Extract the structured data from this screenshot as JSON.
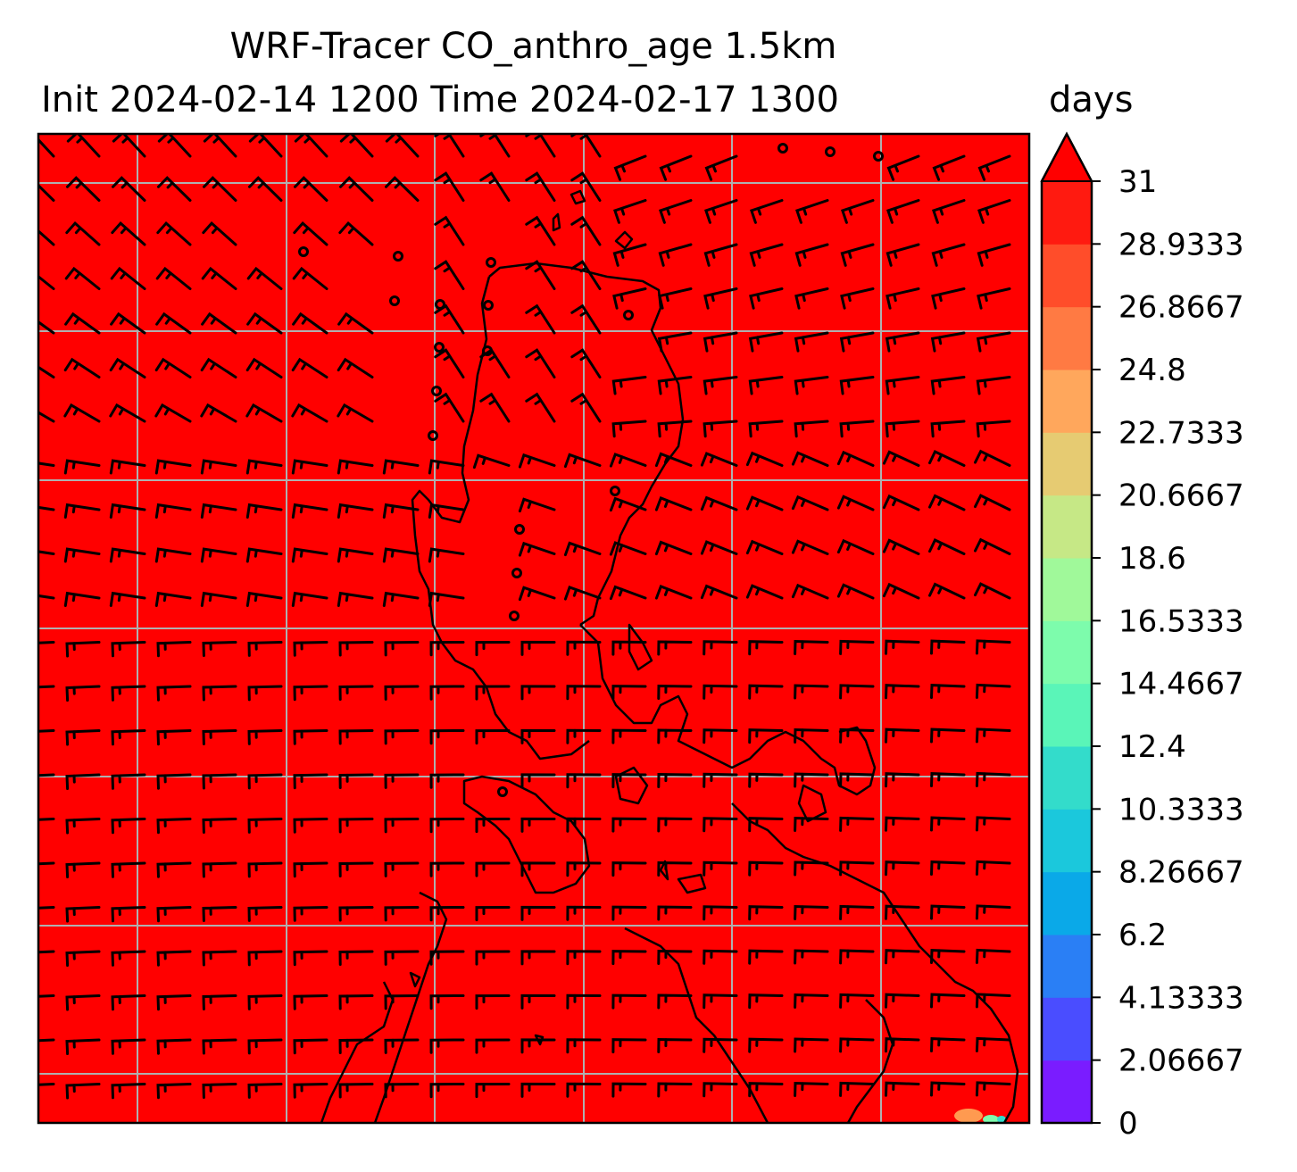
{
  "title": {
    "line1": "WRF-Tracer CO_anthro_age 1.5km",
    "line2": "Init 2024-02-14 1200 Time 2024-02-17 1300"
  },
  "colorbar": {
    "unit": "days",
    "extend": "max",
    "levels": [
      0,
      2.06667,
      4.13333,
      6.2,
      8.26667,
      10.3333,
      12.4,
      14.4667,
      16.5333,
      18.6,
      20.6667,
      22.7333,
      24.8,
      26.8667,
      28.9333,
      31
    ],
    "tick_labels": [
      "0",
      "2.06667",
      "4.13333",
      "6.2",
      "8.26667",
      "10.3333",
      "12.4",
      "14.4667",
      "16.5333",
      "18.6",
      "20.6667",
      "22.7333",
      "24.8",
      "26.8667",
      "28.9333",
      "31"
    ],
    "colors": [
      "#7a1cff",
      "#4a4dff",
      "#2a7ff5",
      "#0aa9e8",
      "#1bc8dc",
      "#33dccb",
      "#5af5b8",
      "#7dfcac",
      "#a0f99a",
      "#c6e886",
      "#e6cb72",
      "#ffa75c",
      "#ff7a43",
      "#ff4d2a",
      "#ff1a10",
      "#ff0000"
    ]
  },
  "map": {
    "field_color": "#ff0000",
    "coastline_color": "#000000",
    "gridline_color": "#b0b0b0"
  }
}
